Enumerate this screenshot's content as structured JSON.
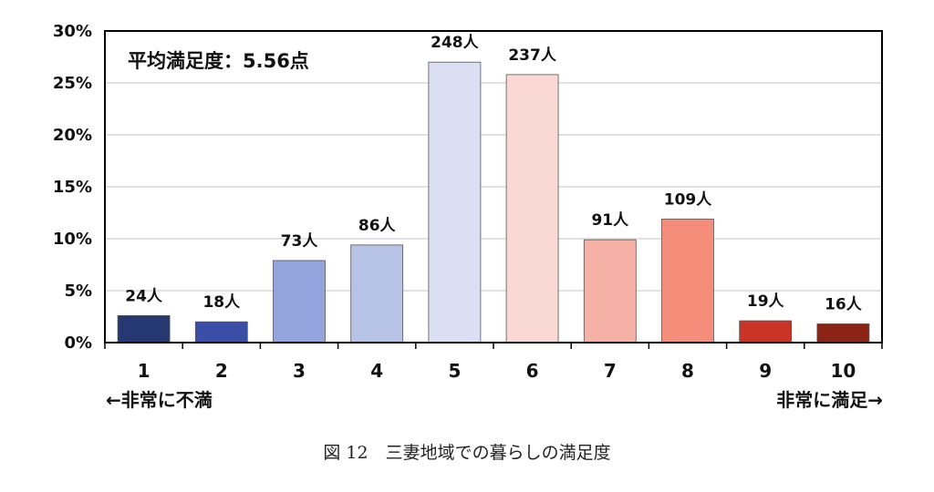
{
  "chart_data": {
    "type": "bar",
    "categories": [
      "1",
      "2",
      "3",
      "4",
      "5",
      "6",
      "7",
      "8",
      "9",
      "10"
    ],
    "values": [
      2.6,
      2.0,
      7.9,
      9.4,
      27.0,
      25.8,
      9.9,
      11.9,
      2.1,
      1.8
    ],
    "data_labels": [
      "24人",
      "18人",
      "73人",
      "86人",
      "248人",
      "237人",
      "91人",
      "109人",
      "19人",
      "16人"
    ],
    "ylim": [
      0,
      30
    ],
    "yticks": [
      "0%",
      "5%",
      "10%",
      "15%",
      "20%",
      "25%",
      "30%"
    ],
    "ytick_values": [
      0,
      5,
      10,
      15,
      20,
      25,
      30
    ],
    "grid": true,
    "colors": [
      "#263872",
      "#3a4ea7",
      "#93a4dc",
      "#b6c2e6",
      "#dadff3",
      "#fad8d3",
      "#f5b1a5",
      "#f48e7b",
      "#c93424",
      "#8a2416"
    ],
    "annotation": "平均満足度：5.56点",
    "left_note": "←非常に不満",
    "right_note": "非常に満足→"
  },
  "caption": "図 12　三妻地域での暮らしの満足度"
}
